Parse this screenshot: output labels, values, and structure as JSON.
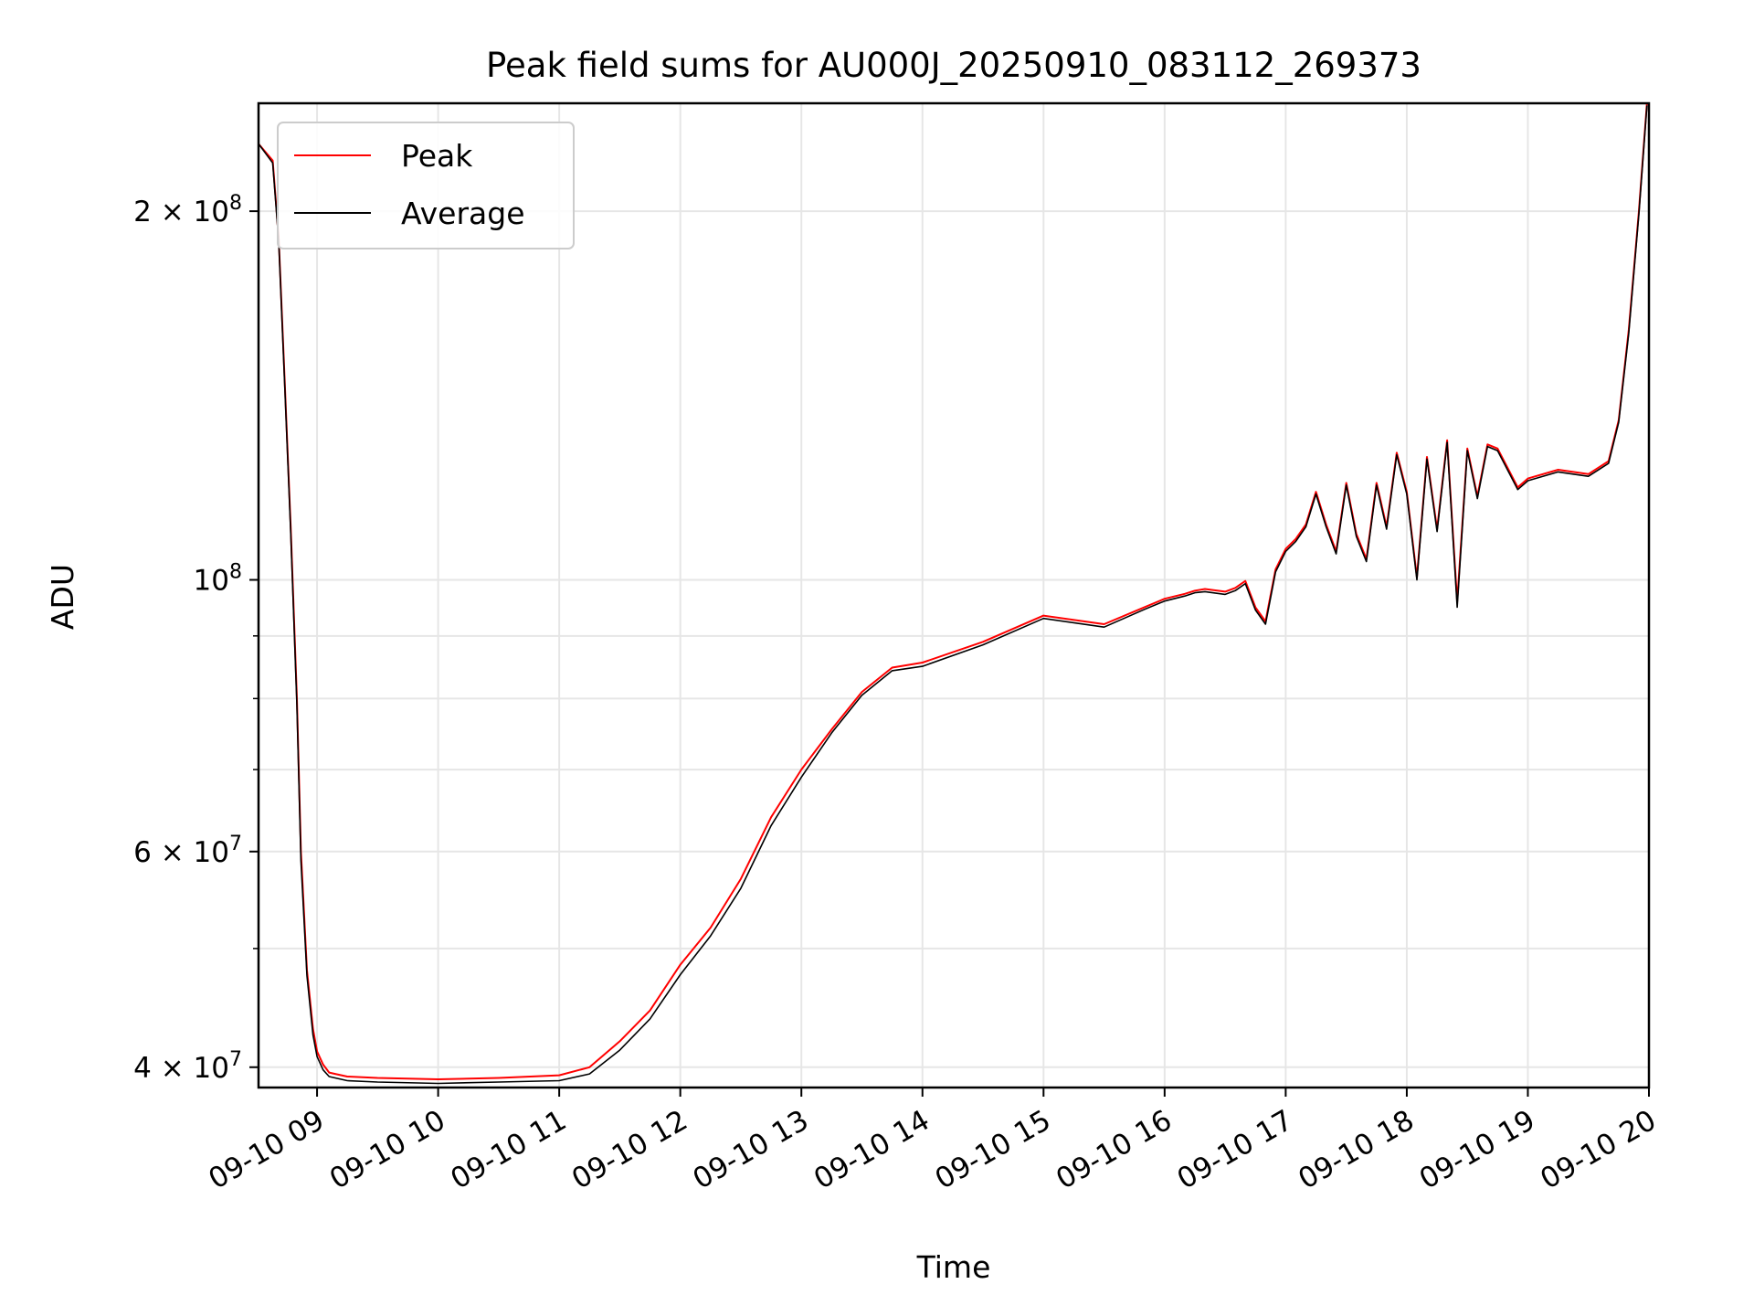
{
  "chart_data": {
    "type": "line",
    "title": "Peak field sums for AU000J_20250910_083112_269373",
    "xlabel": "Time",
    "ylabel": "ADU",
    "yscale": "log",
    "grid": true,
    "legend": "top-left",
    "xlim": [
      "2025-09-10 08:31",
      "2025-09-10 20:00"
    ],
    "ylim": [
      38500000,
      245000000
    ],
    "x_ticks": [
      "09-10 09",
      "09-10 10",
      "09-10 11",
      "09-10 12",
      "09-10 13",
      "09-10 14",
      "09-10 15",
      "09-10 16",
      "09-10 17",
      "09-10 18",
      "09-10 19",
      "09-10 20"
    ],
    "y_ticks": [
      {
        "value": 40000000,
        "mantissa": "4",
        "exponent": "7"
      },
      {
        "value": 60000000,
        "mantissa": "6",
        "exponent": "7"
      },
      {
        "value": 100000000,
        "mantissa": "",
        "exponent": "8"
      },
      {
        "value": 200000000,
        "mantissa": "2",
        "exponent": "8"
      }
    ],
    "x": [
      "2025-09-10 08:31",
      "2025-09-10 08:38",
      "2025-09-10 08:41",
      "2025-09-10 08:44",
      "2025-09-10 08:47",
      "2025-09-10 08:50",
      "2025-09-10 08:52",
      "2025-09-10 08:55",
      "2025-09-10 08:58",
      "2025-09-10 09:00",
      "2025-09-10 09:03",
      "2025-09-10 09:06",
      "2025-09-10 09:09",
      "2025-09-10 09:15",
      "2025-09-10 09:30",
      "2025-09-10 10:00",
      "2025-09-10 10:30",
      "2025-09-10 11:00",
      "2025-09-10 11:15",
      "2025-09-10 11:30",
      "2025-09-10 11:45",
      "2025-09-10 12:00",
      "2025-09-10 12:15",
      "2025-09-10 12:30",
      "2025-09-10 12:45",
      "2025-09-10 13:00",
      "2025-09-10 13:15",
      "2025-09-10 13:30",
      "2025-09-10 13:45",
      "2025-09-10 14:00",
      "2025-09-10 14:30",
      "2025-09-10 15:00",
      "2025-09-10 15:30",
      "2025-09-10 15:50",
      "2025-09-10 16:00",
      "2025-09-10 16:10",
      "2025-09-10 16:15",
      "2025-09-10 16:20",
      "2025-09-10 16:30",
      "2025-09-10 16:35",
      "2025-09-10 16:40",
      "2025-09-10 16:45",
      "2025-09-10 16:50",
      "2025-09-10 16:55",
      "2025-09-10 17:00",
      "2025-09-10 17:05",
      "2025-09-10 17:10",
      "2025-09-10 17:15",
      "2025-09-10 17:20",
      "2025-09-10 17:25",
      "2025-09-10 17:30",
      "2025-09-10 17:35",
      "2025-09-10 17:40",
      "2025-09-10 17:45",
      "2025-09-10 17:50",
      "2025-09-10 17:55",
      "2025-09-10 18:00",
      "2025-09-10 18:05",
      "2025-09-10 18:10",
      "2025-09-10 18:15",
      "2025-09-10 18:20",
      "2025-09-10 18:25",
      "2025-09-10 18:30",
      "2025-09-10 18:35",
      "2025-09-10 18:40",
      "2025-09-10 18:45",
      "2025-09-10 18:55",
      "2025-09-10 19:00",
      "2025-09-10 19:15",
      "2025-09-10 19:30",
      "2025-09-10 19:40",
      "2025-09-10 19:45",
      "2025-09-10 19:50",
      "2025-09-10 19:55",
      "2025-09-10 19:59"
    ],
    "series": [
      {
        "name": "Peak",
        "color": "#ff0000",
        "values": [
          227000000,
          220000000,
          190000000,
          145000000,
          110000000,
          80000000,
          60000000,
          48000000,
          43000000,
          41200000,
          40200000,
          39600000,
          39500000,
          39300000,
          39200000,
          39100000,
          39200000,
          39400000,
          40000000,
          42000000,
          44500000,
          48500000,
          52000000,
          57000000,
          64000000,
          70000000,
          75500000,
          81000000,
          84800000,
          85600000,
          89000000,
          93500000,
          92000000,
          95000000,
          96500000,
          97400000,
          98000000,
          98300000,
          97800000,
          98500000,
          99800000,
          95000000,
          92500000,
          102000000,
          106000000,
          108000000,
          111000000,
          118000000,
          111000000,
          105500000,
          120000000,
          109000000,
          104000000,
          120000000,
          110500000,
          127000000,
          118000000,
          100500000,
          126000000,
          110000000,
          130000000,
          96000000,
          128000000,
          117000000,
          129000000,
          128000000,
          119000000,
          121000000,
          123000000,
          122000000,
          125000000,
          135000000,
          160000000,
          200000000,
          245000000
        ]
      },
      {
        "name": "Average",
        "color": "#000000",
        "values": [
          227000000,
          219000000,
          189000000,
          144000000,
          109000000,
          79000000,
          59000000,
          47500000,
          42500000,
          40800000,
          39800000,
          39300000,
          39200000,
          39000000,
          38900000,
          38800000,
          38900000,
          39000000,
          39500000,
          41300000,
          43800000,
          47600000,
          51200000,
          56000000,
          63000000,
          69000000,
          75000000,
          80500000,
          84300000,
          85000000,
          88500000,
          93000000,
          91500000,
          94600000,
          96100000,
          97000000,
          97600000,
          97800000,
          97300000,
          98000000,
          99300000,
          94500000,
          92000000,
          101500000,
          105500000,
          107500000,
          110500000,
          117500000,
          110500000,
          105000000,
          119500000,
          108500000,
          103500000,
          119500000,
          110000000,
          126500000,
          117500000,
          100000000,
          125500000,
          109500000,
          129500000,
          95000000,
          127500000,
          116500000,
          128500000,
          127500000,
          118500000,
          120500000,
          122500000,
          121500000,
          124500000,
          134500000,
          159000000,
          199000000,
          244000000
        ]
      }
    ]
  }
}
